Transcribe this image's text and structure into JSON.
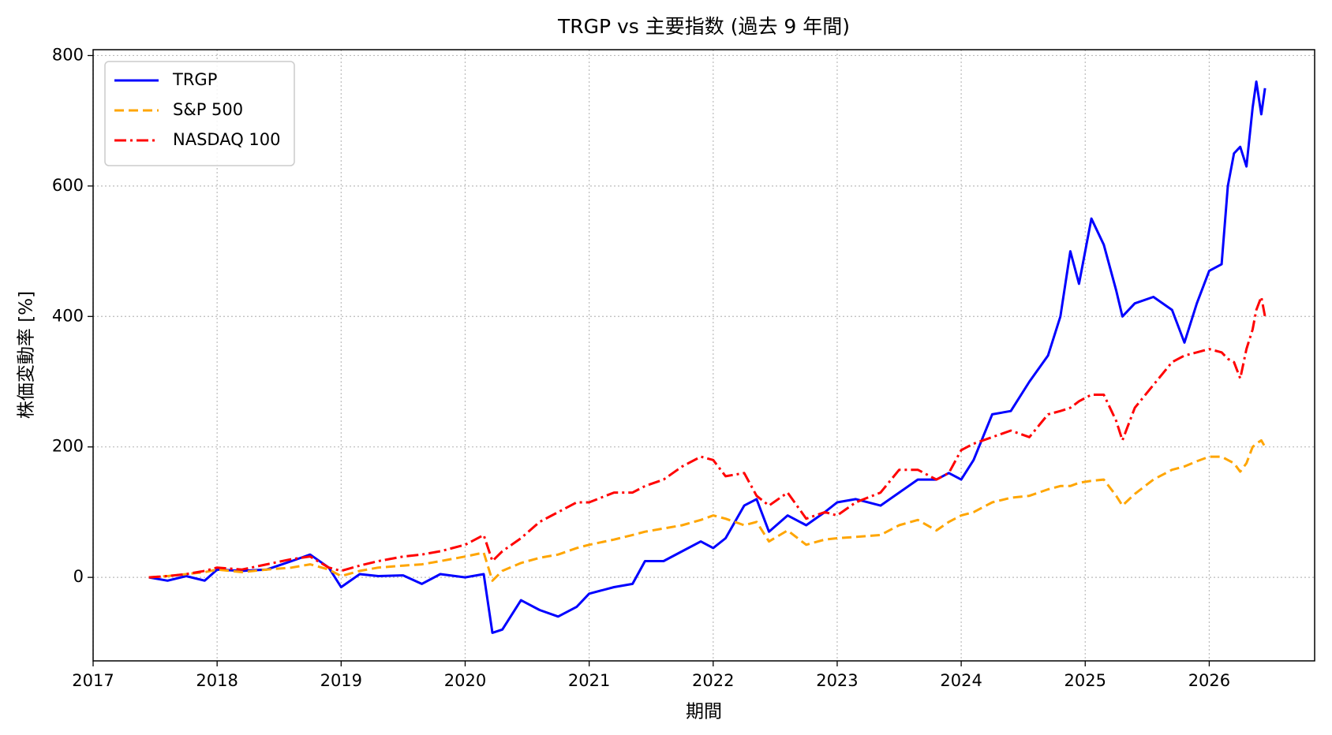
{
  "chart_data": {
    "type": "line",
    "title": "TRGP vs 主要指数 (過去 9 年間)",
    "x_label": "期間",
    "y_label": "株価変動率 [%]",
    "x": [
      2017.45,
      2017.6,
      2017.75,
      2017.9,
      2018.0,
      2018.2,
      2018.4,
      2018.6,
      2018.75,
      2018.9,
      2019.0,
      2019.15,
      2019.3,
      2019.5,
      2019.65,
      2019.8,
      2020.0,
      2020.15,
      2020.22,
      2020.3,
      2020.45,
      2020.6,
      2020.75,
      2020.9,
      2021.0,
      2021.2,
      2021.35,
      2021.45,
      2021.6,
      2021.75,
      2021.9,
      2022.0,
      2022.1,
      2022.25,
      2022.35,
      2022.45,
      2022.6,
      2022.75,
      2022.9,
      2023.0,
      2023.15,
      2023.35,
      2023.5,
      2023.65,
      2023.8,
      2023.9,
      2024.0,
      2024.1,
      2024.25,
      2024.4,
      2024.55,
      2024.7,
      2024.8,
      2024.88,
      2024.95,
      2025.05,
      2025.15,
      2025.25,
      2025.3,
      2025.4,
      2025.55,
      2025.7,
      2025.8,
      2025.9,
      2026.0,
      2026.1,
      2026.15,
      2026.2,
      2026.25,
      2026.3,
      2026.35,
      2026.38,
      2026.42,
      2026.45
    ],
    "series": [
      {
        "name": "TRGP",
        "color": "#0000ff",
        "dash": "solid",
        "values": [
          0,
          -5,
          2,
          -5,
          12,
          10,
          12,
          25,
          35,
          15,
          -15,
          5,
          2,
          3,
          -10,
          5,
          0,
          5,
          -85,
          -80,
          -35,
          -50,
          -60,
          -45,
          -25,
          -15,
          -10,
          25,
          25,
          40,
          55,
          45,
          60,
          110,
          120,
          70,
          95,
          80,
          100,
          115,
          120,
          110,
          130,
          150,
          150,
          160,
          150,
          180,
          250,
          255,
          300,
          340,
          400,
          500,
          450,
          550,
          510,
          440,
          400,
          420,
          430,
          410,
          360,
          420,
          470,
          480,
          600,
          650,
          660,
          630,
          720,
          760,
          710,
          750
        ]
      },
      {
        "name": "S&P 500",
        "color": "#ffa500",
        "dash": "dashed",
        "values": [
          0,
          2,
          5,
          8,
          12,
          8,
          12,
          15,
          20,
          12,
          2,
          10,
          15,
          18,
          20,
          25,
          32,
          38,
          -5,
          10,
          22,
          30,
          35,
          45,
          50,
          58,
          65,
          70,
          75,
          80,
          88,
          95,
          90,
          80,
          85,
          55,
          72,
          50,
          58,
          60,
          62,
          65,
          80,
          88,
          72,
          85,
          95,
          100,
          115,
          122,
          125,
          135,
          140,
          140,
          145,
          148,
          150,
          125,
          110,
          128,
          150,
          165,
          170,
          178,
          185,
          185,
          180,
          175,
          162,
          175,
          200,
          205,
          210,
          200
        ]
      },
      {
        "name": "NASDAQ 100",
        "color": "#ff0000",
        "dash": "dashdot",
        "values": [
          0,
          2,
          5,
          10,
          15,
          12,
          20,
          28,
          32,
          15,
          10,
          18,
          25,
          32,
          35,
          40,
          50,
          65,
          25,
          40,
          60,
          85,
          100,
          115,
          115,
          130,
          130,
          140,
          150,
          170,
          185,
          180,
          155,
          160,
          125,
          110,
          130,
          90,
          100,
          95,
          115,
          130,
          165,
          165,
          150,
          160,
          195,
          205,
          215,
          225,
          215,
          250,
          255,
          260,
          270,
          280,
          280,
          240,
          210,
          260,
          295,
          330,
          340,
          345,
          350,
          345,
          335,
          330,
          305,
          350,
          380,
          410,
          430,
          400
        ]
      }
    ],
    "xlim": [
      2017,
      2026.85
    ],
    "xticks": [
      2017,
      2018,
      2019,
      2020,
      2021,
      2022,
      2023,
      2024,
      2025,
      2026
    ],
    "ylim": [
      -128,
      809
    ],
    "yticks": [
      0,
      200,
      400,
      600,
      800
    ],
    "grid": true,
    "legend": "upper left"
  }
}
